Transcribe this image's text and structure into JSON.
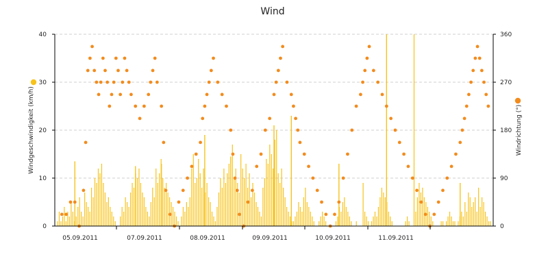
{
  "chart_data": {
    "type": "line",
    "title": "Wind",
    "x_labels": [
      "05.09.2011",
      "07.09.2011",
      "08.09.2011",
      "09.09.2011",
      "10.09.2011",
      "11.09.2011"
    ],
    "y_left": {
      "label": "Windgeschwindigkeit (km/h)",
      "ylim": [
        0,
        40
      ],
      "ticks": [
        "0",
        "10",
        "20",
        "30",
        "40"
      ]
    },
    "y_right": {
      "label": "Windrichtung (°)",
      "ylim": [
        0,
        360
      ],
      "ticks": [
        "0",
        "90",
        "180",
        "270",
        "360"
      ]
    },
    "grid": true,
    "series": [
      {
        "kind": "bar",
        "axis": "left",
        "color": "#f7c31a",
        "values": [
          1,
          3,
          1,
          2,
          4,
          1,
          3,
          2,
          5,
          3,
          1,
          2,
          4,
          6,
          3,
          2,
          7,
          5,
          4,
          3,
          8,
          6,
          10,
          9,
          12,
          11,
          13,
          9,
          7,
          5,
          6,
          4,
          3,
          2,
          1,
          0,
          0,
          2,
          4,
          3,
          6,
          5,
          4,
          7,
          9,
          8,
          11,
          10,
          12,
          9,
          7,
          6,
          4,
          3,
          2,
          5,
          8,
          6,
          12,
          9,
          11,
          14,
          10,
          8,
          9,
          7,
          6,
          5,
          4,
          3,
          2,
          1,
          0,
          2,
          4,
          3,
          5,
          4,
          6,
          12,
          15,
          9,
          10,
          14,
          11,
          8,
          12,
          7,
          9,
          6,
          5,
          3,
          2,
          1,
          4,
          7,
          10,
          8,
          12,
          9,
          11,
          13,
          8,
          17,
          10,
          12,
          9,
          7,
          15,
          12,
          10,
          13,
          8,
          11,
          6,
          9,
          7,
          5,
          4,
          3,
          2,
          8,
          10,
          14,
          13,
          17,
          15,
          12,
          18,
          20,
          11,
          9,
          12,
          8,
          6,
          4,
          3,
          2,
          1,
          1,
          2,
          3,
          5,
          4,
          3,
          6,
          8,
          5,
          4,
          3,
          2,
          1,
          0,
          0,
          1,
          2,
          3,
          2,
          1,
          0,
          0,
          0,
          0,
          0,
          1,
          2,
          4,
          3,
          5,
          6,
          4,
          3,
          2,
          1,
          0,
          0,
          1,
          0,
          0,
          0,
          9,
          3,
          2,
          1,
          0,
          1,
          2,
          3,
          2,
          4,
          6,
          8,
          7,
          6,
          5,
          3,
          2,
          1,
          0,
          0,
          0,
          0,
          0,
          0,
          0,
          1,
          2,
          1,
          0,
          0,
          40,
          3,
          6,
          9,
          7,
          8,
          6,
          5,
          4,
          3,
          2,
          1,
          0,
          0,
          0,
          0,
          1,
          1,
          0,
          1,
          2,
          3,
          2,
          1,
          1,
          0,
          1,
          2,
          3,
          2,
          5,
          3,
          7,
          6,
          4,
          5,
          6,
          3,
          8,
          4,
          6,
          5,
          3,
          2,
          1,
          1
        ],
        "peaks": [
          {
            "x": 0.04,
            "value": 13.5
          },
          {
            "x": 0.18,
            "value": 12.5
          },
          {
            "x": 0.24,
            "value": 13.0
          },
          {
            "x": 0.34,
            "value": 19.0
          },
          {
            "x": 0.4,
            "value": 14.5
          },
          {
            "x": 0.5,
            "value": 21.0
          },
          {
            "x": 0.54,
            "value": 23.0
          },
          {
            "x": 0.65,
            "value": 13.0
          },
          {
            "x": 0.76,
            "value": 40.0
          },
          {
            "x": 0.93,
            "value": 9.0
          }
        ]
      },
      {
        "kind": "scatter",
        "axis": "right",
        "color": "#f28c1e",
        "points": [
          [
            0.01,
            22
          ],
          [
            0.02,
            22
          ],
          [
            0.03,
            45
          ],
          [
            0.04,
            45
          ],
          [
            0.05,
            0
          ],
          [
            0.06,
            67
          ],
          [
            0.065,
            157
          ],
          [
            0.07,
            292
          ],
          [
            0.075,
            315
          ],
          [
            0.08,
            337
          ],
          [
            0.085,
            292
          ],
          [
            0.09,
            270
          ],
          [
            0.095,
            247
          ],
          [
            0.1,
            270
          ],
          [
            0.105,
            315
          ],
          [
            0.11,
            292
          ],
          [
            0.115,
            270
          ],
          [
            0.12,
            225
          ],
          [
            0.125,
            247
          ],
          [
            0.13,
            270
          ],
          [
            0.135,
            315
          ],
          [
            0.14,
            292
          ],
          [
            0.145,
            247
          ],
          [
            0.15,
            270
          ],
          [
            0.155,
            315
          ],
          [
            0.16,
            292
          ],
          [
            0.165,
            270
          ],
          [
            0.17,
            247
          ],
          [
            0.18,
            225
          ],
          [
            0.19,
            202
          ],
          [
            0.2,
            225
          ],
          [
            0.21,
            247
          ],
          [
            0.215,
            270
          ],
          [
            0.22,
            292
          ],
          [
            0.225,
            315
          ],
          [
            0.23,
            270
          ],
          [
            0.24,
            225
          ],
          [
            0.245,
            157
          ],
          [
            0.25,
            67
          ],
          [
            0.26,
            22
          ],
          [
            0.27,
            0
          ],
          [
            0.28,
            45
          ],
          [
            0.29,
            67
          ],
          [
            0.3,
            90
          ],
          [
            0.31,
            112
          ],
          [
            0.32,
            135
          ],
          [
            0.33,
            157
          ],
          [
            0.335,
            202
          ],
          [
            0.34,
            225
          ],
          [
            0.345,
            247
          ],
          [
            0.35,
            270
          ],
          [
            0.355,
            292
          ],
          [
            0.36,
            315
          ],
          [
            0.37,
            270
          ],
          [
            0.38,
            247
          ],
          [
            0.39,
            225
          ],
          [
            0.4,
            180
          ],
          [
            0.405,
            135
          ],
          [
            0.41,
            90
          ],
          [
            0.415,
            67
          ],
          [
            0.42,
            22
          ],
          [
            0.43,
            0
          ],
          [
            0.44,
            45
          ],
          [
            0.45,
            67
          ],
          [
            0.46,
            112
          ],
          [
            0.47,
            135
          ],
          [
            0.48,
            180
          ],
          [
            0.49,
            202
          ],
          [
            0.5,
            247
          ],
          [
            0.505,
            270
          ],
          [
            0.51,
            292
          ],
          [
            0.515,
            315
          ],
          [
            0.52,
            337
          ],
          [
            0.53,
            270
          ],
          [
            0.54,
            247
          ],
          [
            0.545,
            225
          ],
          [
            0.55,
            202
          ],
          [
            0.555,
            180
          ],
          [
            0.56,
            157
          ],
          [
            0.57,
            135
          ],
          [
            0.58,
            112
          ],
          [
            0.59,
            90
          ],
          [
            0.6,
            67
          ],
          [
            0.61,
            45
          ],
          [
            0.62,
            22
          ],
          [
            0.63,
            0
          ],
          [
            0.64,
            22
          ],
          [
            0.65,
            45
          ],
          [
            0.66,
            90
          ],
          [
            0.67,
            135
          ],
          [
            0.68,
            180
          ],
          [
            0.69,
            225
          ],
          [
            0.7,
            247
          ],
          [
            0.705,
            270
          ],
          [
            0.71,
            292
          ],
          [
            0.715,
            315
          ],
          [
            0.72,
            337
          ],
          [
            0.73,
            292
          ],
          [
            0.74,
            270
          ],
          [
            0.75,
            247
          ],
          [
            0.76,
            225
          ],
          [
            0.77,
            202
          ],
          [
            0.78,
            180
          ],
          [
            0.79,
            157
          ],
          [
            0.8,
            135
          ],
          [
            0.81,
            112
          ],
          [
            0.82,
            90
          ],
          [
            0.83,
            67
          ],
          [
            0.84,
            45
          ],
          [
            0.85,
            22
          ],
          [
            0.86,
            0
          ],
          [
            0.87,
            22
          ],
          [
            0.88,
            45
          ],
          [
            0.89,
            67
          ],
          [
            0.9,
            90
          ],
          [
            0.91,
            112
          ],
          [
            0.92,
            135
          ],
          [
            0.93,
            157
          ],
          [
            0.935,
            180
          ],
          [
            0.94,
            202
          ],
          [
            0.945,
            225
          ],
          [
            0.95,
            247
          ],
          [
            0.955,
            270
          ],
          [
            0.96,
            292
          ],
          [
            0.965,
            315
          ],
          [
            0.97,
            337
          ],
          [
            0.975,
            315
          ],
          [
            0.98,
            292
          ],
          [
            0.985,
            270
          ],
          [
            0.99,
            247
          ],
          [
            0.995,
            225
          ]
        ]
      }
    ]
  }
}
